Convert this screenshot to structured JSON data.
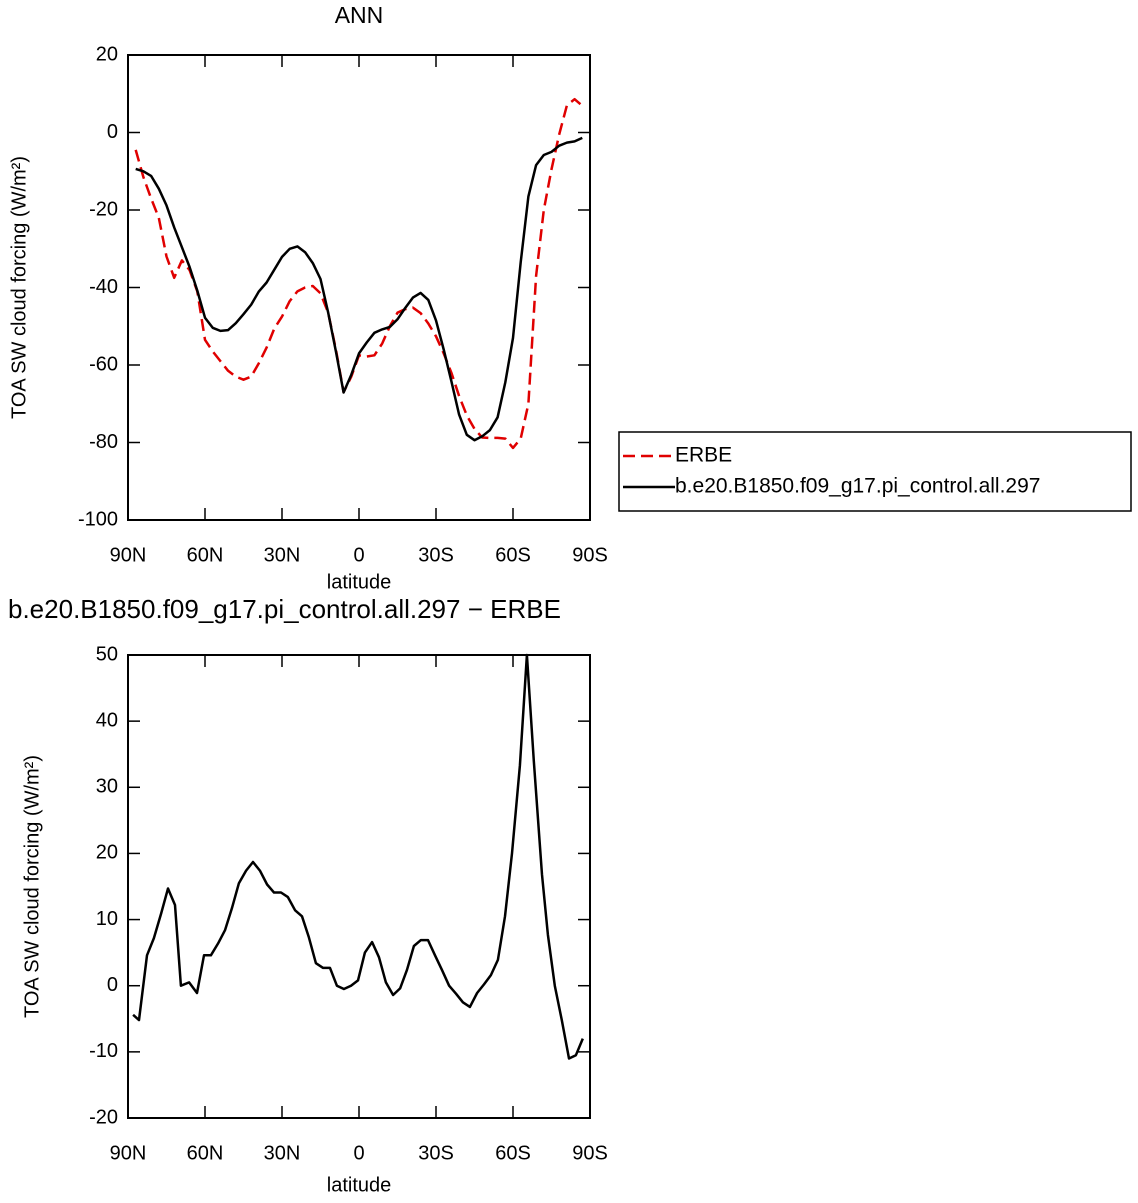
{
  "chart_data": [
    {
      "type": "line",
      "title": "ANN",
      "xlabel": "latitude",
      "ylabel": "TOA SW cloud forcing (W/m²)",
      "x": [
        87,
        84,
        81,
        78,
        75,
        72,
        69,
        66,
        63,
        60,
        57,
        54,
        51,
        48,
        45,
        42,
        39,
        36,
        33,
        30,
        27,
        24,
        21,
        18,
        15,
        12,
        9,
        6,
        3,
        0,
        -3,
        -6,
        -9,
        -12,
        -15,
        -18,
        -21,
        -24,
        -27,
        -30,
        -33,
        -36,
        -39,
        -42,
        -45,
        -48,
        -51,
        -54,
        -57,
        -60,
        -63,
        -66,
        -69,
        -72,
        -75,
        -78,
        -81,
        -84,
        -87
      ],
      "series": [
        {
          "name": "ERBE",
          "color": "#e00000",
          "linestyle": "dashed",
          "values": [
            -4.5,
            -11.5,
            -17,
            -22,
            -32,
            -37.5,
            -33,
            -35.5,
            -41,
            -53.5,
            -56.5,
            -59,
            -61.5,
            -63,
            -63.8,
            -63,
            -59.5,
            -55.5,
            -50.6,
            -47.5,
            -43.5,
            -41,
            -40,
            -39.6,
            -41.5,
            -46.5,
            -56,
            -67,
            -63,
            -57.5,
            -57.8,
            -57.5,
            -54.5,
            -50,
            -46.5,
            -45.6,
            -45.2,
            -46.6,
            -49.3,
            -52.6,
            -57,
            -62,
            -68,
            -73,
            -76.5,
            -78.7,
            -78.8,
            -78.8,
            -79,
            -81.4,
            -79,
            -70,
            -37,
            -20,
            -9.5,
            -0.5,
            7,
            8.6,
            6.9
          ]
        },
        {
          "name": "b.e20.B1850.f09_g17.pi_control.all.297",
          "color": "#000000",
          "linestyle": "solid",
          "values": [
            -9.4,
            -10,
            -11.2,
            -14.5,
            -18.8,
            -24.5,
            -29.6,
            -34.7,
            -40.8,
            -47.8,
            -50.4,
            -51.2,
            -51,
            -49.2,
            -46.9,
            -44.4,
            -41,
            -38.7,
            -35.4,
            -32.1,
            -30,
            -29.4,
            -30.9,
            -33.7,
            -37.8,
            -46.5,
            -56.5,
            -67.1,
            -62.5,
            -57,
            -54.2,
            -51.7,
            -50.8,
            -50.2,
            -48.2,
            -45.3,
            -42.6,
            -41.4,
            -43.2,
            -48.5,
            -56,
            -64.2,
            -72.8,
            -78,
            -79.4,
            -78.4,
            -76.8,
            -73.5,
            -64.5,
            -53,
            -33.5,
            -16.5,
            -8.4,
            -5.8,
            -5,
            -3.4,
            -2.6,
            -2.3,
            -1.4
          ]
        }
      ],
      "xlim": [
        90,
        -90
      ],
      "xticks": [
        {
          "value": 90,
          "label": "90N"
        },
        {
          "value": 60,
          "label": "60N"
        },
        {
          "value": 30,
          "label": "30N"
        },
        0,
        {
          "value": -30,
          "label": "30S"
        },
        {
          "value": -60,
          "label": "60S"
        },
        {
          "value": -90,
          "label": "90S"
        }
      ],
      "ylim": [
        -100,
        20
      ],
      "yticks": [
        -100,
        -80,
        -60,
        -40,
        -20,
        0,
        20
      ],
      "legend": "outside-right"
    },
    {
      "type": "line",
      "title": "b.e20.B1850.f09_g17.pi_control.all.297 − ERBE",
      "xlabel": "latitude",
      "ylabel": "TOA SW cloud forcing (W/m²)",
      "x": [
        88,
        85.7,
        82.6,
        79.9,
        77.1,
        74.4,
        71.7,
        69.4,
        66.2,
        63.1,
        60.4,
        57.7,
        54.9,
        52.2,
        49.5,
        46.8,
        44,
        41.3,
        38.6,
        35.8,
        33.1,
        30.4,
        27.7,
        24.9,
        22.2,
        19.5,
        16.8,
        14,
        11.3,
        8.6,
        5.9,
        3.1,
        0.4,
        -2.3,
        -5.1,
        -7.8,
        -10.5,
        -13.3,
        -16,
        -18.7,
        -21.4,
        -24.1,
        -26.9,
        -29.6,
        -32.3,
        -35.1,
        -37.8,
        -40.5,
        -43.2,
        -46,
        -48.7,
        -51.4,
        -54.1,
        -56.9,
        -59.6,
        -62.7,
        -65.4,
        -68.1,
        -71.3,
        -73.6,
        -76.3,
        -79,
        -81.8,
        -84.5,
        -87.2
      ],
      "values": [
        -4.4,
        -5.2,
        4.6,
        7.2,
        10.9,
        14.7,
        12.2,
        0,
        0.5,
        -1.1,
        4.6,
        4.6,
        6.4,
        8.4,
        11.7,
        15.5,
        17.4,
        18.7,
        17.4,
        15.3,
        14.1,
        14.1,
        13.4,
        11.4,
        10.5,
        7.3,
        3.4,
        2.7,
        2.7,
        0,
        -0.5,
        0,
        0.8,
        5,
        6.6,
        4.3,
        0.5,
        -1.4,
        -0.4,
        2.4,
        6,
        6.9,
        6.9,
        4.6,
        2.4,
        0,
        -1.2,
        -2.5,
        -3.2,
        -1.1,
        0.2,
        1.6,
        3.9,
        10.5,
        20,
        33.3,
        50,
        34,
        16.8,
        7.7,
        0,
        -5.2,
        -11,
        -10.5,
        -8
      ],
      "color": "#000000",
      "linestyle": "solid",
      "xlim": [
        90,
        -90
      ],
      "xticks": [
        {
          "value": 90,
          "label": "90N"
        },
        {
          "value": 60,
          "label": "60N"
        },
        {
          "value": 30,
          "label": "30N"
        },
        0,
        {
          "value": -30,
          "label": "30S"
        },
        {
          "value": -60,
          "label": "60S"
        },
        {
          "value": -90,
          "label": "90S"
        }
      ],
      "ylim": [
        -20,
        50
      ],
      "yticks": [
        -20,
        -10,
        0,
        10,
        20,
        30,
        40,
        50
      ]
    }
  ]
}
